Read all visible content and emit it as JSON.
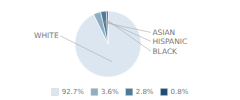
{
  "chart_data": {
    "type": "pie",
    "categories": [
      "WHITE",
      "ASIAN",
      "HISPANIC",
      "BLACK"
    ],
    "values": [
      92.7,
      3.6,
      2.8,
      0.8
    ],
    "value_labels": [
      "92.7%",
      "3.6%",
      "2.8%",
      "0.8%"
    ],
    "colors": [
      "#dce6f0",
      "#8eafc2",
      "#4f7a9b",
      "#1f4e79"
    ],
    "legend": "bottom"
  }
}
